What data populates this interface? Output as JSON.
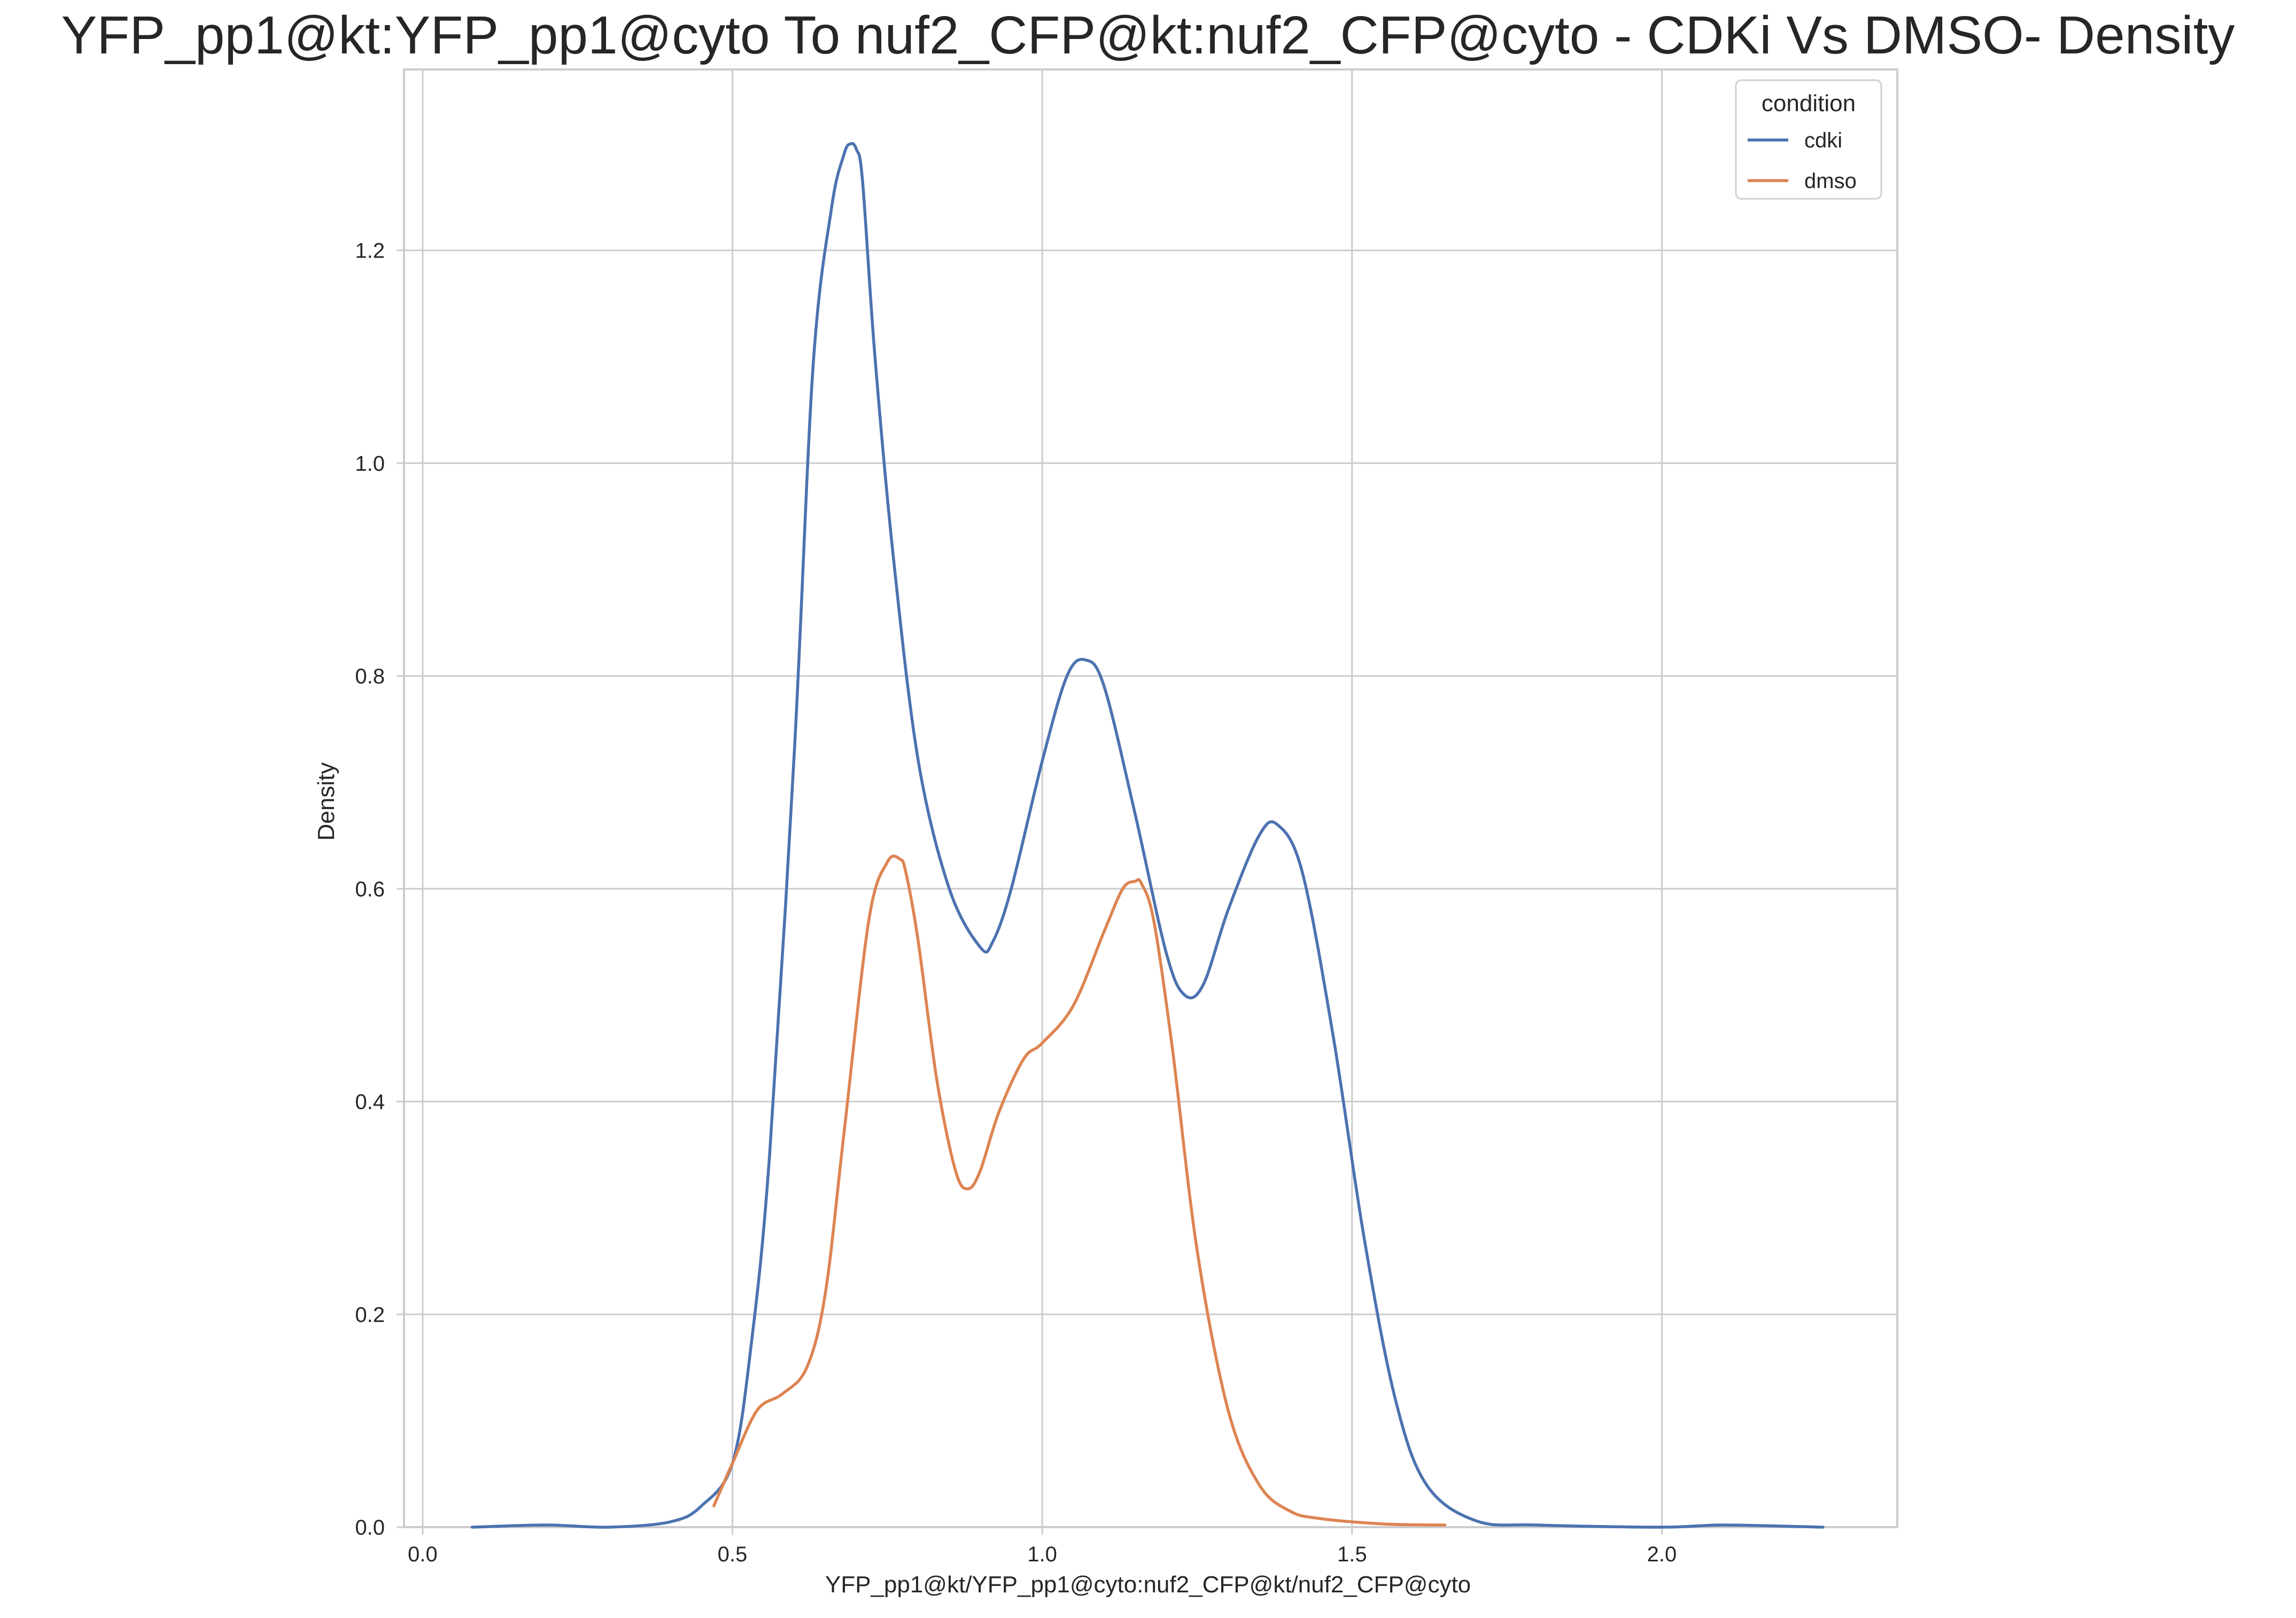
{
  "chart_data": {
    "type": "line",
    "title": "YFP_pp1@kt:YFP_pp1@cyto To nuf2_CFP@kt:nuf2_CFP@cyto - CDKi Vs DMSO- Density",
    "xlabel": "YFP_pp1@kt/YFP_pp1@cyto:nuf2_CFP@kt/nuf2_CFP@cyto",
    "ylabel": "Density",
    "xlim": [
      -0.03,
      2.38
    ],
    "ylim": [
      0.0,
      1.37
    ],
    "xticks": [
      0.0,
      0.5,
      1.0,
      1.5,
      2.0
    ],
    "xtick_labels": [
      "0.0",
      "0.5",
      "1.0",
      "1.5",
      "2.0"
    ],
    "yticks": [
      0.0,
      0.2,
      0.4,
      0.6,
      0.8,
      1.0,
      1.2
    ],
    "ytick_labels": [
      "0.0",
      "0.2",
      "0.4",
      "0.6",
      "0.8",
      "1.0",
      "1.2"
    ],
    "grid": true,
    "legend": {
      "title": "condition",
      "placement": "top-right"
    },
    "series": [
      {
        "name": "cdki",
        "color": "#4c72b0",
        "x": [
          0.08,
          0.2,
          0.3,
          0.4,
          0.45,
          0.5,
          0.53,
          0.56,
          0.6,
          0.63,
          0.66,
          0.68,
          0.69,
          0.7,
          0.71,
          0.73,
          0.76,
          0.8,
          0.85,
          0.9,
          0.92,
          0.95,
          1.0,
          1.04,
          1.07,
          1.1,
          1.15,
          1.2,
          1.23,
          1.26,
          1.3,
          1.35,
          1.38,
          1.42,
          1.47,
          1.52,
          1.57,
          1.62,
          1.7,
          1.8,
          2.0,
          2.1,
          2.26
        ],
        "y": [
          0.0,
          0.002,
          0.0,
          0.005,
          0.02,
          0.06,
          0.17,
          0.35,
          0.73,
          1.09,
          1.24,
          1.29,
          1.3,
          1.295,
          1.265,
          1.1,
          0.91,
          0.72,
          0.6,
          0.545,
          0.55,
          0.6,
          0.72,
          0.8,
          0.815,
          0.79,
          0.67,
          0.54,
          0.5,
          0.51,
          0.58,
          0.65,
          0.66,
          0.615,
          0.46,
          0.27,
          0.12,
          0.04,
          0.006,
          0.002,
          0.0,
          0.002,
          0.0
        ]
      },
      {
        "name": "dmso",
        "color": "#dd8452",
        "x": [
          0.47,
          0.5,
          0.54,
          0.58,
          0.62,
          0.65,
          0.68,
          0.72,
          0.75,
          0.77,
          0.78,
          0.8,
          0.83,
          0.86,
          0.88,
          0.9,
          0.93,
          0.97,
          1.0,
          1.05,
          1.1,
          1.13,
          1.15,
          1.16,
          1.18,
          1.21,
          1.25,
          1.3,
          1.35,
          1.4,
          1.45,
          1.55,
          1.65
        ],
        "y": [
          0.02,
          0.06,
          0.11,
          0.125,
          0.15,
          0.22,
          0.37,
          0.57,
          0.625,
          0.628,
          0.615,
          0.55,
          0.42,
          0.335,
          0.318,
          0.335,
          0.39,
          0.44,
          0.455,
          0.49,
          0.56,
          0.6,
          0.607,
          0.605,
          0.57,
          0.45,
          0.26,
          0.11,
          0.04,
          0.015,
          0.008,
          0.003,
          0.002
        ]
      }
    ]
  }
}
